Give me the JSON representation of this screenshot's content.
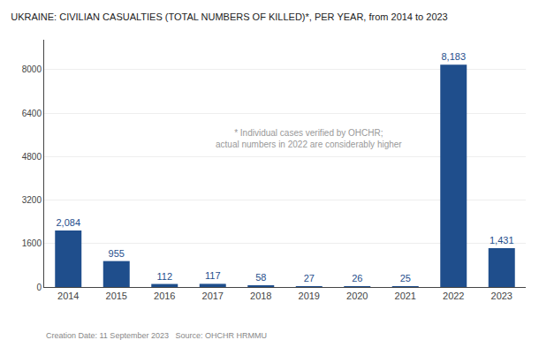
{
  "chart_data": {
    "type": "bar",
    "title": "UKRAINE: CIVILIAN CASUALTIES (TOTAL NUMBERS OF KILLED)*, PER YEAR, from 2014 to 2023",
    "categories": [
      "2014",
      "2015",
      "2016",
      "2017",
      "2018",
      "2019",
      "2020",
      "2021",
      "2022",
      "2023"
    ],
    "values": [
      2084,
      955,
      112,
      117,
      58,
      27,
      26,
      25,
      8183,
      1431
    ],
    "value_labels": [
      "2,084",
      "955",
      "112",
      "117",
      "58",
      "27",
      "26",
      "25",
      "8,183",
      "1,431"
    ],
    "data_labels": true,
    "color": "#1f4e8c",
    "ylim": [
      0,
      9100
    ],
    "yticks": [
      0,
      1600,
      3200,
      4800,
      6400,
      8000
    ],
    "grid": true,
    "annotations": [
      "* Individual cases verified by OHCHR;\nactual numbers in 2022 are considerably higher",
      "Creation Date: 11 September 2023   Source: OHCHR HRMMU"
    ]
  }
}
